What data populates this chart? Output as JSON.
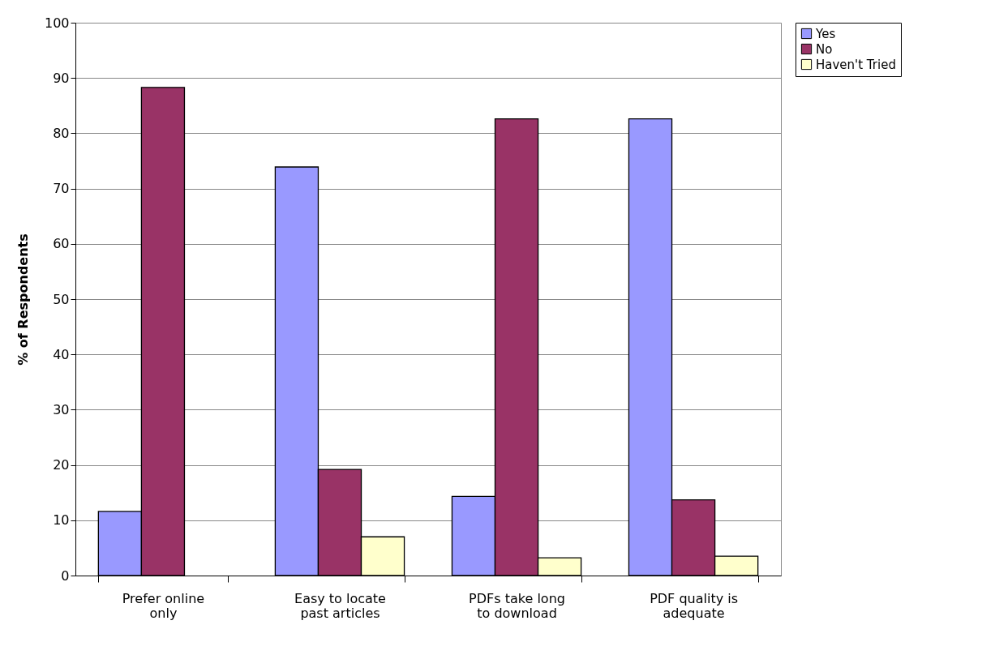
{
  "chart_data": {
    "type": "bar",
    "ylabel": "% of Respondents",
    "categories": [
      "Prefer online only",
      "Easy to locate past articles",
      "PDFs take long to download",
      "PDF quality is adequate"
    ],
    "series": [
      {
        "name": "Yes",
        "color": "#9999ff",
        "values": [
          11.6,
          73.9,
          14.3,
          82.6
        ]
      },
      {
        "name": "No",
        "color": "#993366",
        "values": [
          88.3,
          19.2,
          82.6,
          13.7
        ]
      },
      {
        "name": "Haven't Tried",
        "color": "#ffffcc",
        "values": [
          null,
          7.0,
          3.2,
          3.5
        ]
      }
    ],
    "ylim": [
      0,
      100
    ],
    "yticks": [
      0,
      10,
      20,
      30,
      40,
      50,
      60,
      70,
      80,
      90,
      100
    ],
    "grid": "y",
    "legend": "right"
  }
}
